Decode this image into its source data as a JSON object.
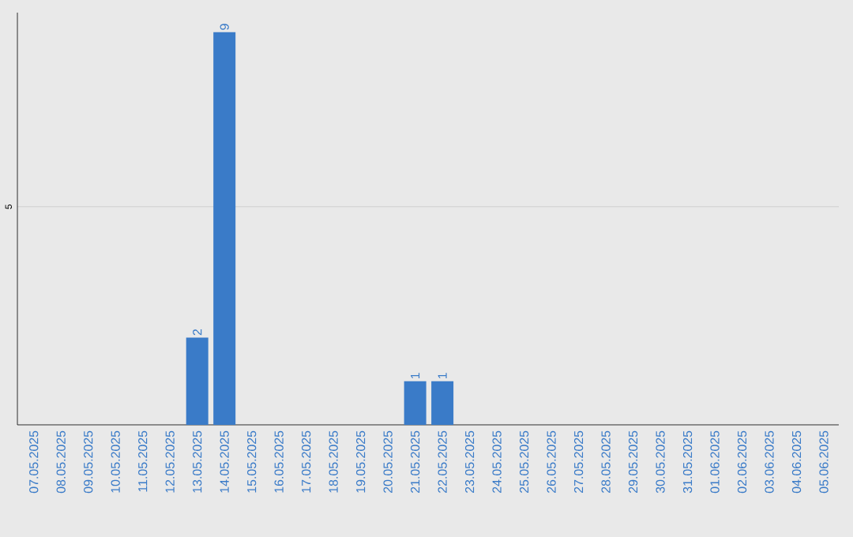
{
  "chart_data": {
    "type": "bar",
    "categories": [
      "07.05.2025",
      "08.05.2025",
      "09.05.2025",
      "10.05.2025",
      "11.05.2025",
      "12.05.2025",
      "13.05.2025",
      "14.05.2025",
      "15.05.2025",
      "16.05.2025",
      "17.05.2025",
      "18.05.2025",
      "19.05.2025",
      "20.05.2025",
      "21.05.2025",
      "22.05.2025",
      "23.05.2025",
      "24.05.2025",
      "25.05.2025",
      "26.05.2025",
      "27.05.2025",
      "28.05.2025",
      "29.05.2025",
      "30.05.2025",
      "31.05.2025",
      "01.06.2025",
      "02.06.2025",
      "03.06.2025",
      "04.06.2025",
      "05.06.2025"
    ],
    "values": [
      0,
      0,
      0,
      0,
      0,
      0,
      2,
      9,
      0,
      0,
      0,
      0,
      0,
      0,
      1,
      1,
      0,
      0,
      0,
      0,
      0,
      0,
      0,
      0,
      0,
      0,
      0,
      0,
      0,
      0
    ],
    "value_labels": [
      null,
      null,
      null,
      null,
      null,
      null,
      "2",
      "9",
      null,
      null,
      null,
      null,
      null,
      null,
      "1",
      "1",
      null,
      null,
      null,
      null,
      null,
      null,
      null,
      null,
      null,
      null,
      null,
      null,
      null,
      null
    ],
    "color": "#3a7bc8",
    "ylim": [
      0,
      9.45
    ],
    "yticks": [
      5
    ],
    "grid": "y"
  }
}
